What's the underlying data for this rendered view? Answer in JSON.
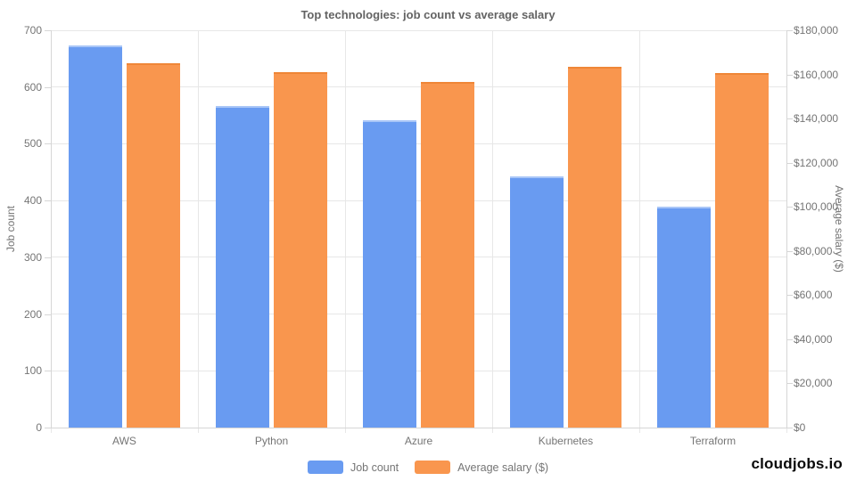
{
  "footer": {
    "brand": "cloudjobs.io"
  },
  "chart_data": {
    "type": "bar",
    "title": "Top technologies: job count vs average salary",
    "categories": [
      "AWS",
      "Python",
      "Azure",
      "Kubernetes",
      "Terraform"
    ],
    "series": [
      {
        "name": "Job count",
        "axis": "left",
        "color": "#699bf1",
        "values": [
          674,
          567,
          541,
          443,
          390
        ]
      },
      {
        "name": "Average salary ($)",
        "axis": "right",
        "color": "#f9964e",
        "values": [
          165000,
          161000,
          156500,
          163300,
          160700
        ]
      }
    ],
    "left_axis": {
      "label": "Job count",
      "min": 0,
      "max": 700,
      "step": 100,
      "prefix": ""
    },
    "right_axis": {
      "label": "Average salary ($)",
      "min": 0,
      "max": 180000,
      "step": 20000,
      "prefix": "$"
    },
    "grid": true,
    "legend_position": "bottom"
  }
}
